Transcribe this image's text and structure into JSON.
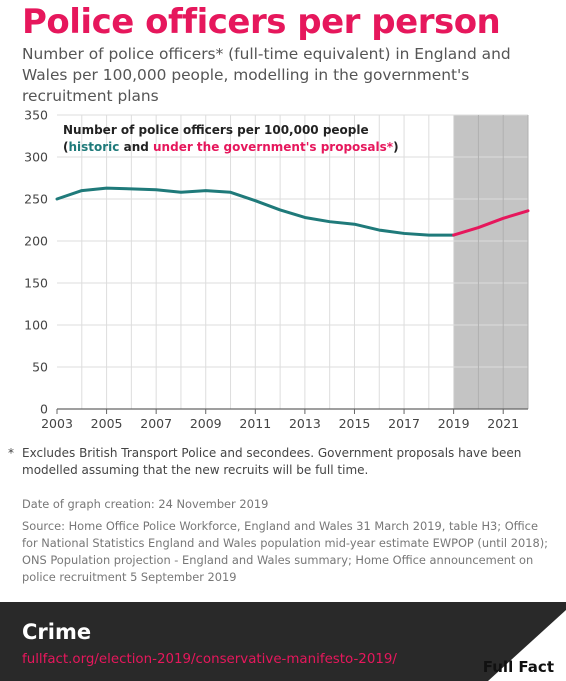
{
  "title": "Police officers per person",
  "subtitle": "Number of police officers* (full-time equivalent) in England and Wales per 100,000 people, modelling in the government's recruitment plans",
  "chart_data": {
    "type": "line",
    "legend_title": "Number of police officers per 100,000 people",
    "legend_open": "(",
    "legend_historic": "historic",
    "legend_and": " and ",
    "legend_proposal": "under the government's proposals*",
    "legend_close": ")",
    "x_ticks": [
      "2003",
      "2005",
      "2007",
      "2009",
      "2011",
      "2013",
      "2015",
      "2017",
      "2019",
      "2021"
    ],
    "y_ticks": [
      "0",
      "50",
      "100",
      "150",
      "200",
      "250",
      "300",
      "350"
    ],
    "ylim": [
      0,
      350
    ],
    "xlim": [
      2003,
      2022
    ],
    "shaded_from": 2019,
    "grid": true,
    "series": [
      {
        "role": "historic",
        "x": [
          2003,
          2004,
          2005,
          2006,
          2007,
          2008,
          2009,
          2010,
          2011,
          2012,
          2013,
          2014,
          2015,
          2016,
          2017,
          2018,
          2019
        ],
        "values": [
          250,
          260,
          263,
          262,
          261,
          258,
          260,
          258,
          248,
          237,
          228,
          223,
          220,
          213,
          209,
          207,
          207
        ]
      },
      {
        "role": "proposal",
        "x": [
          2019,
          2020,
          2021,
          2022
        ],
        "values": [
          207,
          216,
          227,
          236
        ]
      }
    ],
    "colors": {
      "historic": "#1f7a7a",
      "proposal": "#e6175c",
      "shade": "#c4c4c4",
      "grid": "#dddddd",
      "axis": "#666666"
    }
  },
  "footnote": {
    "star": "*",
    "text": "Excludes British Transport Police and secondees. Government proposals have been modelled assuming that the new recruits will be full time."
  },
  "date": "Date of graph creation: 24 November 2019",
  "source": "Source: Home Office Police Workforce, England and Wales 31 March 2019, table H3; Office for National Statistics England and Wales population mid-year estimate EWPOP (until 2018); ONS Population projection - England and Wales summary; Home Office announcement on police recruitment 5 September 2019",
  "banner": {
    "section": "Crime",
    "link": "fullfact.org/election-2019/conservative-manifesto-2019/",
    "logo": "Full Fact"
  }
}
